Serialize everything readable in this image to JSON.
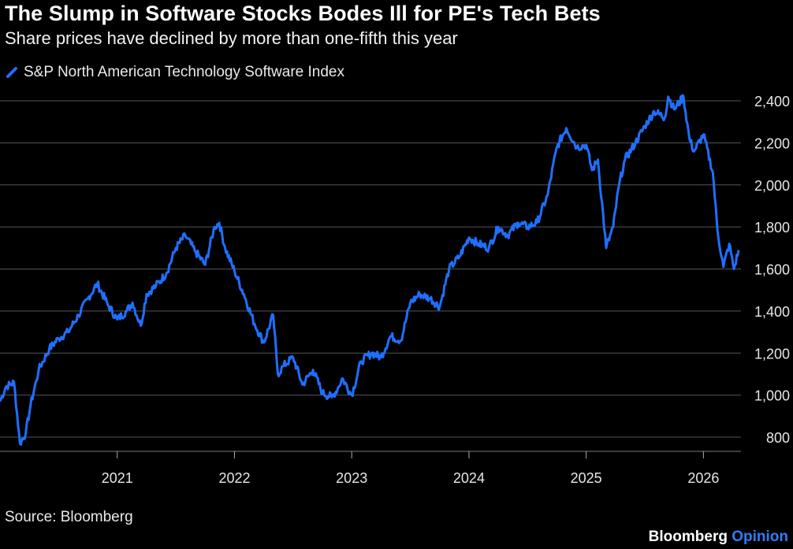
{
  "header": {
    "title": "The Slump in Software Stocks Bodes Ill for PE's Tech Bets",
    "subtitle": "Share prices have declined by more than one-fifth this year"
  },
  "footer": {
    "source": "Source: Bloomberg",
    "brand_primary": "Bloomberg",
    "brand_secondary": "Opinion"
  },
  "colors": {
    "background": "#000000",
    "series": "#1f6fff",
    "grid": "#555555",
    "brand_accent": "#2f7df6"
  },
  "chart_data": {
    "type": "line",
    "title": "The Slump in Software Stocks Bodes Ill for PE's Tech Bets",
    "subtitle": "Share prices have declined by more than one-fifth this year",
    "xlabel": "",
    "ylabel": "",
    "x_ticks": [
      "2021",
      "2022",
      "2023",
      "2024",
      "2025",
      "2026"
    ],
    "x_range": [
      2020.0,
      2026.32
    ],
    "y_ticks": [
      800,
      1000,
      1200,
      1400,
      1600,
      1800,
      2000,
      2200,
      2400
    ],
    "y_tick_labels": [
      "800",
      "1,000",
      "1,200",
      "1,400",
      "1,600",
      "1,800",
      "2,000",
      "2,200",
      "2,400"
    ],
    "ylim": [
      730,
      2480
    ],
    "grid": true,
    "legend_position": "top-left",
    "series": [
      {
        "name": "S&P North American Technology Software Index",
        "x": [
          2020.0,
          2020.05,
          2020.12,
          2020.17,
          2020.22,
          2020.26,
          2020.33,
          2020.42,
          2020.5,
          2020.58,
          2020.67,
          2020.75,
          2020.83,
          2020.92,
          2021.0,
          2021.08,
          2021.13,
          2021.2,
          2021.25,
          2021.33,
          2021.42,
          2021.5,
          2021.58,
          2021.67,
          2021.75,
          2021.83,
          2021.87,
          2021.92,
          2022.0,
          2022.08,
          2022.17,
          2022.25,
          2022.33,
          2022.37,
          2022.42,
          2022.5,
          2022.58,
          2022.67,
          2022.75,
          2022.83,
          2022.88,
          2022.92,
          2023.0,
          2023.08,
          2023.17,
          2023.25,
          2023.33,
          2023.42,
          2023.5,
          2023.58,
          2023.67,
          2023.75,
          2023.83,
          2023.92,
          2024.0,
          2024.08,
          2024.17,
          2024.25,
          2024.33,
          2024.42,
          2024.5,
          2024.58,
          2024.67,
          2024.75,
          2024.83,
          2024.92,
          2025.0,
          2025.05,
          2025.1,
          2025.17,
          2025.23,
          2025.28,
          2025.33,
          2025.42,
          2025.5,
          2025.58,
          2025.67,
          2025.7,
          2025.75,
          2025.83,
          2025.88,
          2025.92,
          2026.0,
          2026.08,
          2026.12,
          2026.17,
          2026.22,
          2026.26,
          2026.3
        ],
        "values": [
          970,
          1040,
          1060,
          770,
          820,
          950,
          1120,
          1220,
          1270,
          1300,
          1380,
          1460,
          1530,
          1430,
          1360,
          1400,
          1440,
          1330,
          1480,
          1520,
          1580,
          1700,
          1760,
          1680,
          1620,
          1800,
          1820,
          1700,
          1590,
          1480,
          1340,
          1250,
          1380,
          1100,
          1140,
          1180,
          1050,
          1120,
          1010,
          990,
          1030,
          1080,
          1000,
          1160,
          1200,
          1180,
          1280,
          1260,
          1440,
          1480,
          1460,
          1420,
          1600,
          1660,
          1750,
          1720,
          1700,
          1800,
          1760,
          1820,
          1800,
          1820,
          1950,
          2180,
          2270,
          2180,
          2190,
          2070,
          2120,
          1700,
          1800,
          2000,
          2120,
          2200,
          2280,
          2350,
          2320,
          2420,
          2360,
          2420,
          2220,
          2160,
          2240,
          2060,
          1780,
          1610,
          1720,
          1600,
          1690
        ]
      }
    ]
  }
}
